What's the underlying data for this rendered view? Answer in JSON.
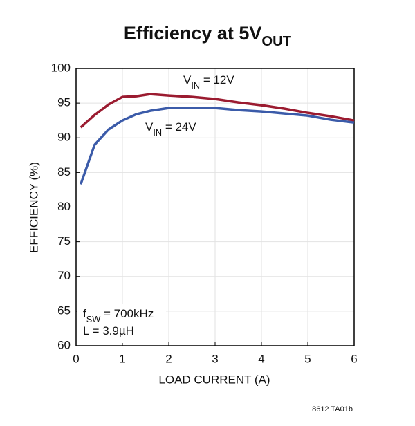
{
  "chart_data": {
    "type": "line",
    "title_parts": [
      "Efficiency at 5V",
      "OUT"
    ],
    "xlabel": "LOAD CURRENT (A)",
    "ylabel": "EFFICIENCY (%)",
    "x": [
      0.1,
      0.4,
      0.7,
      1.0,
      1.3,
      1.6,
      2.0,
      2.5,
      3.0,
      3.5,
      4.0,
      4.5,
      5.0,
      5.5,
      6.0
    ],
    "series": [
      {
        "label_parts": [
          "V",
          "IN",
          " = 12V"
        ],
        "color": "#9b1b30",
        "values": [
          91.5,
          93.3,
          94.8,
          95.9,
          96.0,
          96.3,
          96.1,
          95.9,
          95.6,
          95.1,
          94.7,
          94.2,
          93.6,
          93.1,
          92.5
        ]
      },
      {
        "label_parts": [
          "V",
          "IN",
          " = 24V"
        ],
        "color": "#3b5ba9",
        "values": [
          83.3,
          89.0,
          91.2,
          92.5,
          93.4,
          93.9,
          94.3,
          94.3,
          94.3,
          94.0,
          93.8,
          93.5,
          93.2,
          92.6,
          92.2
        ]
      }
    ],
    "annotations": [
      [
        "f",
        "SW",
        " = 700kHz"
      ],
      [
        "L = 3.9µH"
      ]
    ],
    "footnote": "8612 TA01b",
    "xlim": [
      0,
      6
    ],
    "xticks": [
      0,
      1,
      2,
      3,
      4,
      5,
      6
    ],
    "ylim": [
      60,
      100
    ],
    "yticks": [
      60,
      65,
      70,
      75,
      80,
      85,
      90,
      95,
      100
    ],
    "grid": true
  }
}
